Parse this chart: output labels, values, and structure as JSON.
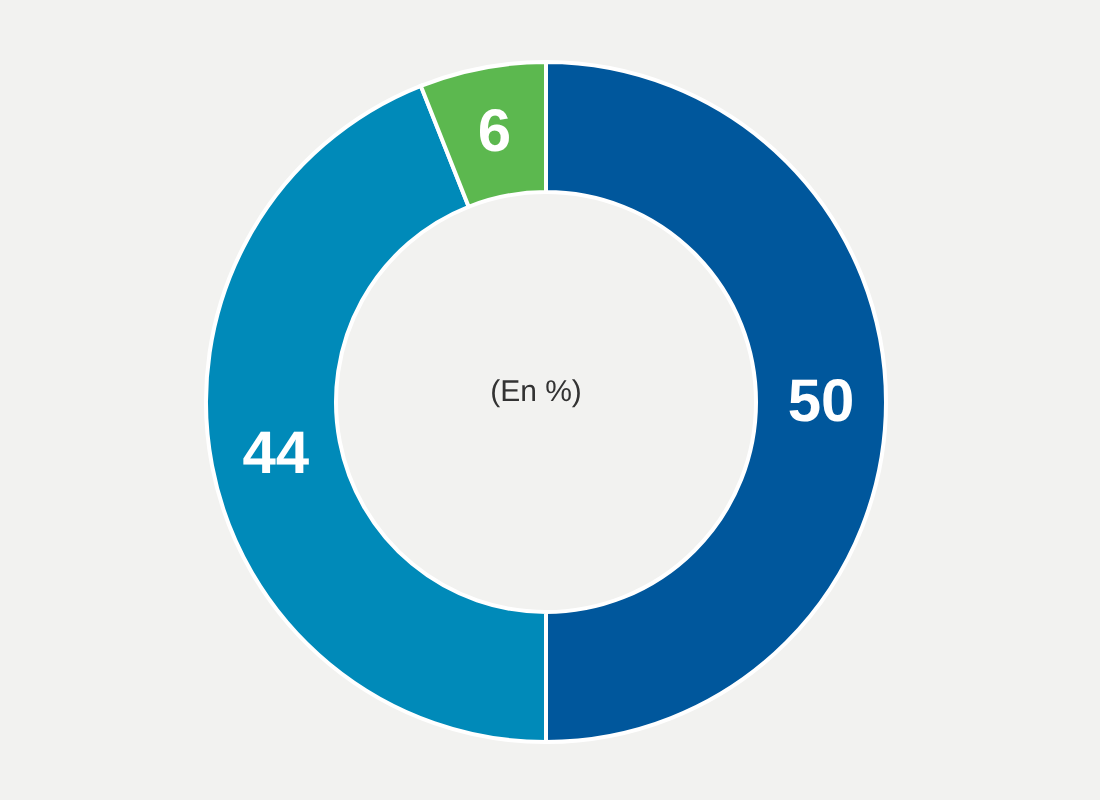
{
  "chart_data": {
    "type": "donut",
    "categories": [
      null,
      null,
      null
    ],
    "values": [
      50,
      44,
      6
    ],
    "colors": [
      "#00579c",
      "#008ab9",
      "#5cb84f"
    ],
    "data_labels": true,
    "annotations": [
      "(En %)"
    ]
  }
}
